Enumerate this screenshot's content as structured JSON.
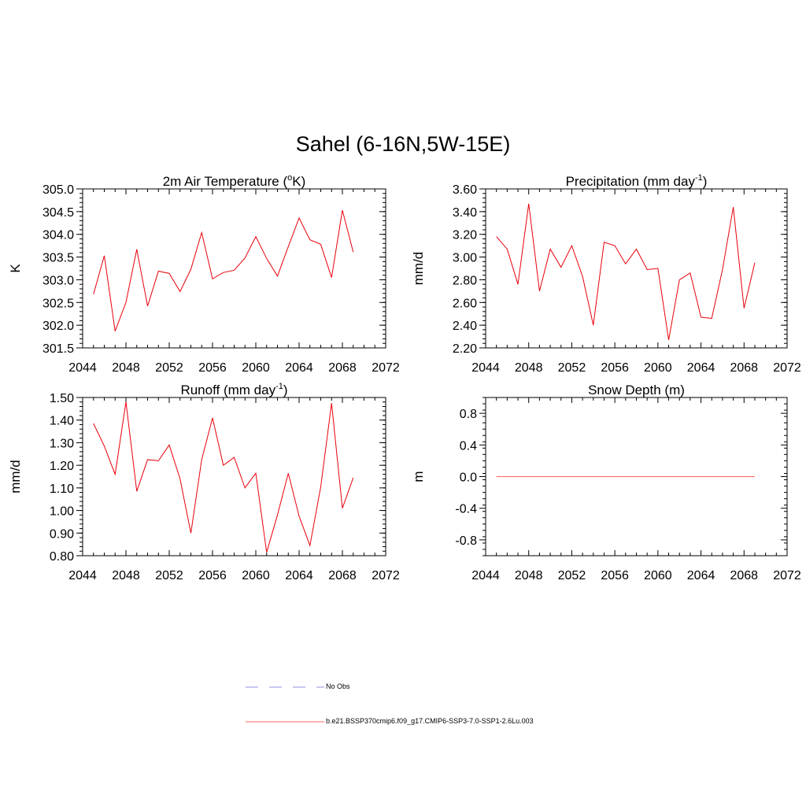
{
  "title": "Sahel (6-16N,5W-15E)",
  "legend": {
    "obs_label": "No Obs",
    "obs_color": "#a6a6e6",
    "model_label": "b.e21.BSSP370cmip6.f09_g17.CMIP6-SSP3-7.0-SSP1-2.6Lu.003",
    "model_color": "#ff8080"
  },
  "chart_data": [
    {
      "type": "line",
      "title": "2m Air Temperature (",
      "title_sup": "o",
      "title_tail": "K)",
      "ylabel": "K",
      "xlim": [
        2044,
        2072
      ],
      "ylim": [
        301.5,
        305.0
      ],
      "xticks": [
        "2044",
        "2048",
        "2052",
        "2056",
        "2060",
        "2064",
        "2068",
        "2072"
      ],
      "yticks": [
        "301.5",
        "302.0",
        "302.5",
        "303.0",
        "303.5",
        "304.0",
        "304.5",
        "305.0"
      ],
      "color": "#e8000b",
      "series": [
        {
          "x": [
            2045,
            2046,
            2047,
            2048,
            2049,
            2050,
            2051,
            2052,
            2053,
            2054,
            2055,
            2056,
            2057,
            2058,
            2059,
            2060,
            2061,
            2062,
            2063,
            2064,
            2065,
            2066,
            2067,
            2068,
            2069
          ],
          "values": [
            302.68,
            303.53,
            301.87,
            302.5,
            303.67,
            302.42,
            303.19,
            303.14,
            302.74,
            303.23,
            304.04,
            303.02,
            303.16,
            303.21,
            303.48,
            303.95,
            303.47,
            303.08,
            303.73,
            304.36,
            303.88,
            303.78,
            303.05,
            304.53,
            303.61
          ]
        }
      ]
    },
    {
      "type": "line",
      "title": "Precipitation (mm day",
      "title_sup": "-1",
      "title_tail": ")",
      "ylabel": "mm/d",
      "xlim": [
        2044,
        2072
      ],
      "ylim": [
        2.2,
        3.6
      ],
      "xticks": [
        "2044",
        "2048",
        "2052",
        "2056",
        "2060",
        "2064",
        "2068",
        "2072"
      ],
      "yticks": [
        "2.20",
        "2.40",
        "2.60",
        "2.80",
        "3.00",
        "3.20",
        "3.40",
        "3.60"
      ],
      "color": "#e8000b",
      "series": [
        {
          "x": [
            2045,
            2046,
            2047,
            2048,
            2049,
            2050,
            2051,
            2052,
            2053,
            2054,
            2055,
            2056,
            2057,
            2058,
            2059,
            2060,
            2061,
            2062,
            2063,
            2064,
            2065,
            2066,
            2067,
            2068,
            2069
          ],
          "values": [
            3.18,
            3.07,
            2.76,
            3.47,
            2.7,
            3.07,
            2.91,
            3.1,
            2.83,
            2.4,
            3.13,
            3.1,
            2.94,
            3.07,
            2.89,
            2.9,
            2.27,
            2.8,
            2.86,
            2.47,
            2.46,
            2.89,
            3.44,
            2.55,
            2.95
          ]
        }
      ]
    },
    {
      "type": "line",
      "title": "Runoff (mm day",
      "title_sup": "-1",
      "title_tail": ")",
      "ylabel": "mm/d",
      "xlim": [
        2044,
        2072
      ],
      "ylim": [
        0.8,
        1.5
      ],
      "xticks": [
        "2044",
        "2048",
        "2052",
        "2056",
        "2060",
        "2064",
        "2068",
        "2072"
      ],
      "yticks": [
        "0.80",
        "0.90",
        "1.00",
        "1.10",
        "1.20",
        "1.30",
        "1.40",
        "1.50"
      ],
      "color": "#e8000b",
      "series": [
        {
          "x": [
            2045,
            2046,
            2047,
            2048,
            2049,
            2050,
            2051,
            2052,
            2053,
            2054,
            2055,
            2056,
            2057,
            2058,
            2059,
            2060,
            2061,
            2062,
            2063,
            2064,
            2065,
            2066,
            2067,
            2068,
            2069
          ],
          "values": [
            1.385,
            1.285,
            1.16,
            1.48,
            1.085,
            1.225,
            1.22,
            1.29,
            1.14,
            0.9,
            1.225,
            1.41,
            1.2,
            1.235,
            1.1,
            1.165,
            0.815,
            0.98,
            1.165,
            0.975,
            0.845,
            1.105,
            1.475,
            1.01,
            1.145
          ]
        }
      ]
    },
    {
      "type": "line",
      "title": "Snow Depth (m)",
      "title_sup": "",
      "title_tail": "",
      "ylabel": "m",
      "xlim": [
        2044,
        2072
      ],
      "ylim": [
        -1.0,
        1.0
      ],
      "xticks": [
        "2044",
        "2048",
        "2052",
        "2056",
        "2060",
        "2064",
        "2068",
        "2072"
      ],
      "yticks": [
        "-0.8",
        "-0.4",
        "0.0",
        "0.4",
        "0.8"
      ],
      "color": "#ff6060",
      "series": [
        {
          "x": [
            2045,
            2069
          ],
          "values": [
            0.0,
            0.0
          ]
        }
      ]
    }
  ]
}
